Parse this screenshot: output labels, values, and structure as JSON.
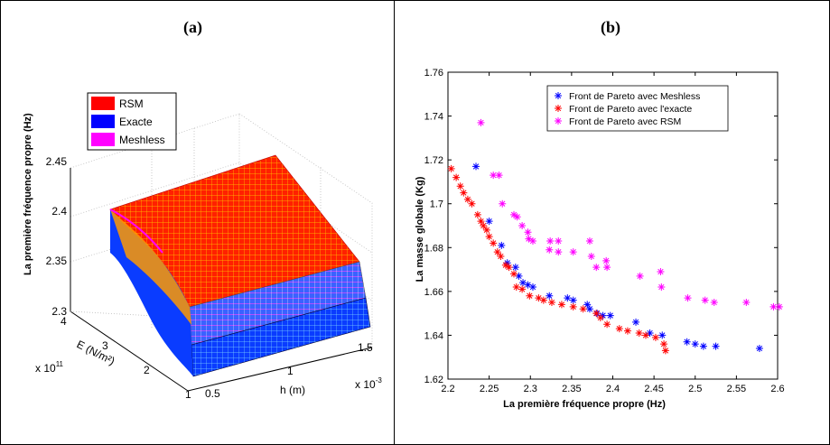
{
  "panels": {
    "a": "(a)",
    "b": "(b)"
  },
  "surface_plot": {
    "type": "surface3d",
    "zlabel": "La première fréquence propre (Hz)",
    "ylabel": "E (N/m²)",
    "xlabel": "h (m)",
    "y_multiplier": "x 10",
    "y_multiplier_exp": "11",
    "x_multiplier": "x 10",
    "x_multiplier_exp": "-3",
    "z_ticks": [
      "2.3",
      "2.35",
      "2.4",
      "2.45"
    ],
    "y_ticks": [
      "1",
      "2",
      "3",
      "4"
    ],
    "x_ticks": [
      "0.5",
      "1",
      "1.5"
    ],
    "legend": [
      {
        "label": "RSM",
        "color": "#ff0000"
      },
      {
        "label": "Exacte",
        "color": "#0000ff"
      },
      {
        "label": "Meshless",
        "color": "#ff00ff"
      }
    ]
  },
  "chart_data": {
    "type": "scatter",
    "xlabel": "La première fréquence propre (Hz)",
    "ylabel": "La masse globale (Kg)",
    "xlim": [
      2.2,
      2.6
    ],
    "ylim": [
      1.62,
      1.76
    ],
    "x_ticks": [
      "2.2",
      "2.25",
      "2.3",
      "2.35",
      "2.4",
      "2.45",
      "2.5",
      "2.55",
      "2.6"
    ],
    "y_ticks": [
      "1.62",
      "1.64",
      "1.66",
      "1.68",
      "1.7",
      "1.72",
      "1.74",
      "1.76"
    ],
    "legend_position": "top-right",
    "marker": "*",
    "series": [
      {
        "name": "Front  de Pareto avec Meshless",
        "color": "#0000ff",
        "points": [
          [
            2.234,
            1.717
          ],
          [
            2.25,
            1.692
          ],
          [
            2.265,
            1.681
          ],
          [
            2.272,
            1.673
          ],
          [
            2.282,
            1.671
          ],
          [
            2.286,
            1.667
          ],
          [
            2.291,
            1.664
          ],
          [
            2.297,
            1.663
          ],
          [
            2.303,
            1.662
          ],
          [
            2.323,
            1.658
          ],
          [
            2.345,
            1.657
          ],
          [
            2.352,
            1.656
          ],
          [
            2.369,
            1.654
          ],
          [
            2.372,
            1.652
          ],
          [
            2.381,
            1.65
          ],
          [
            2.388,
            1.649
          ],
          [
            2.397,
            1.649
          ],
          [
            2.428,
            1.646
          ],
          [
            2.445,
            1.641
          ],
          [
            2.46,
            1.64
          ],
          [
            2.49,
            1.637
          ],
          [
            2.5,
            1.636
          ],
          [
            2.51,
            1.635
          ],
          [
            2.525,
            1.635
          ],
          [
            2.578,
            1.634
          ]
        ]
      },
      {
        "name": "Front de Pareto avec l'exacte",
        "color": "#ff0000",
        "points": [
          [
            2.204,
            1.716
          ],
          [
            2.21,
            1.712
          ],
          [
            2.215,
            1.708
          ],
          [
            2.219,
            1.705
          ],
          [
            2.224,
            1.702
          ],
          [
            2.229,
            1.7
          ],
          [
            2.236,
            1.695
          ],
          [
            2.24,
            1.692
          ],
          [
            2.243,
            1.69
          ],
          [
            2.247,
            1.688
          ],
          [
            2.25,
            1.685
          ],
          [
            2.255,
            1.682
          ],
          [
            2.26,
            1.678
          ],
          [
            2.264,
            1.676
          ],
          [
            2.27,
            1.672
          ],
          [
            2.274,
            1.671
          ],
          [
            2.28,
            1.668
          ],
          [
            2.283,
            1.662
          ],
          [
            2.29,
            1.661
          ],
          [
            2.299,
            1.658
          ],
          [
            2.31,
            1.657
          ],
          [
            2.316,
            1.656
          ],
          [
            2.326,
            1.655
          ],
          [
            2.338,
            1.654
          ],
          [
            2.352,
            1.653
          ],
          [
            2.364,
            1.652
          ],
          [
            2.38,
            1.65
          ],
          [
            2.385,
            1.648
          ],
          [
            2.393,
            1.645
          ],
          [
            2.408,
            1.643
          ],
          [
            2.418,
            1.642
          ],
          [
            2.432,
            1.641
          ],
          [
            2.44,
            1.64
          ],
          [
            2.452,
            1.639
          ],
          [
            2.462,
            1.636
          ],
          [
            2.464,
            1.633
          ]
        ]
      },
      {
        "name": "Front de Pareto avec RSM",
        "color": "#ff00ff",
        "points": [
          [
            2.24,
            1.737
          ],
          [
            2.255,
            1.713
          ],
          [
            2.262,
            1.713
          ],
          [
            2.266,
            1.7
          ],
          [
            2.28,
            1.695
          ],
          [
            2.284,
            1.694
          ],
          [
            2.29,
            1.69
          ],
          [
            2.297,
            1.687
          ],
          [
            2.298,
            1.684
          ],
          [
            2.303,
            1.683
          ],
          [
            2.324,
            1.683
          ],
          [
            2.334,
            1.683
          ],
          [
            2.323,
            1.679
          ],
          [
            2.334,
            1.678
          ],
          [
            2.352,
            1.678
          ],
          [
            2.372,
            1.683
          ],
          [
            2.374,
            1.676
          ],
          [
            2.38,
            1.671
          ],
          [
            2.392,
            1.674
          ],
          [
            2.393,
            1.671
          ],
          [
            2.433,
            1.667
          ],
          [
            2.458,
            1.669
          ],
          [
            2.459,
            1.662
          ],
          [
            2.491,
            1.657
          ],
          [
            2.512,
            1.656
          ],
          [
            2.523,
            1.655
          ],
          [
            2.562,
            1.655
          ],
          [
            2.595,
            1.653
          ],
          [
            2.602,
            1.653
          ]
        ]
      }
    ]
  }
}
